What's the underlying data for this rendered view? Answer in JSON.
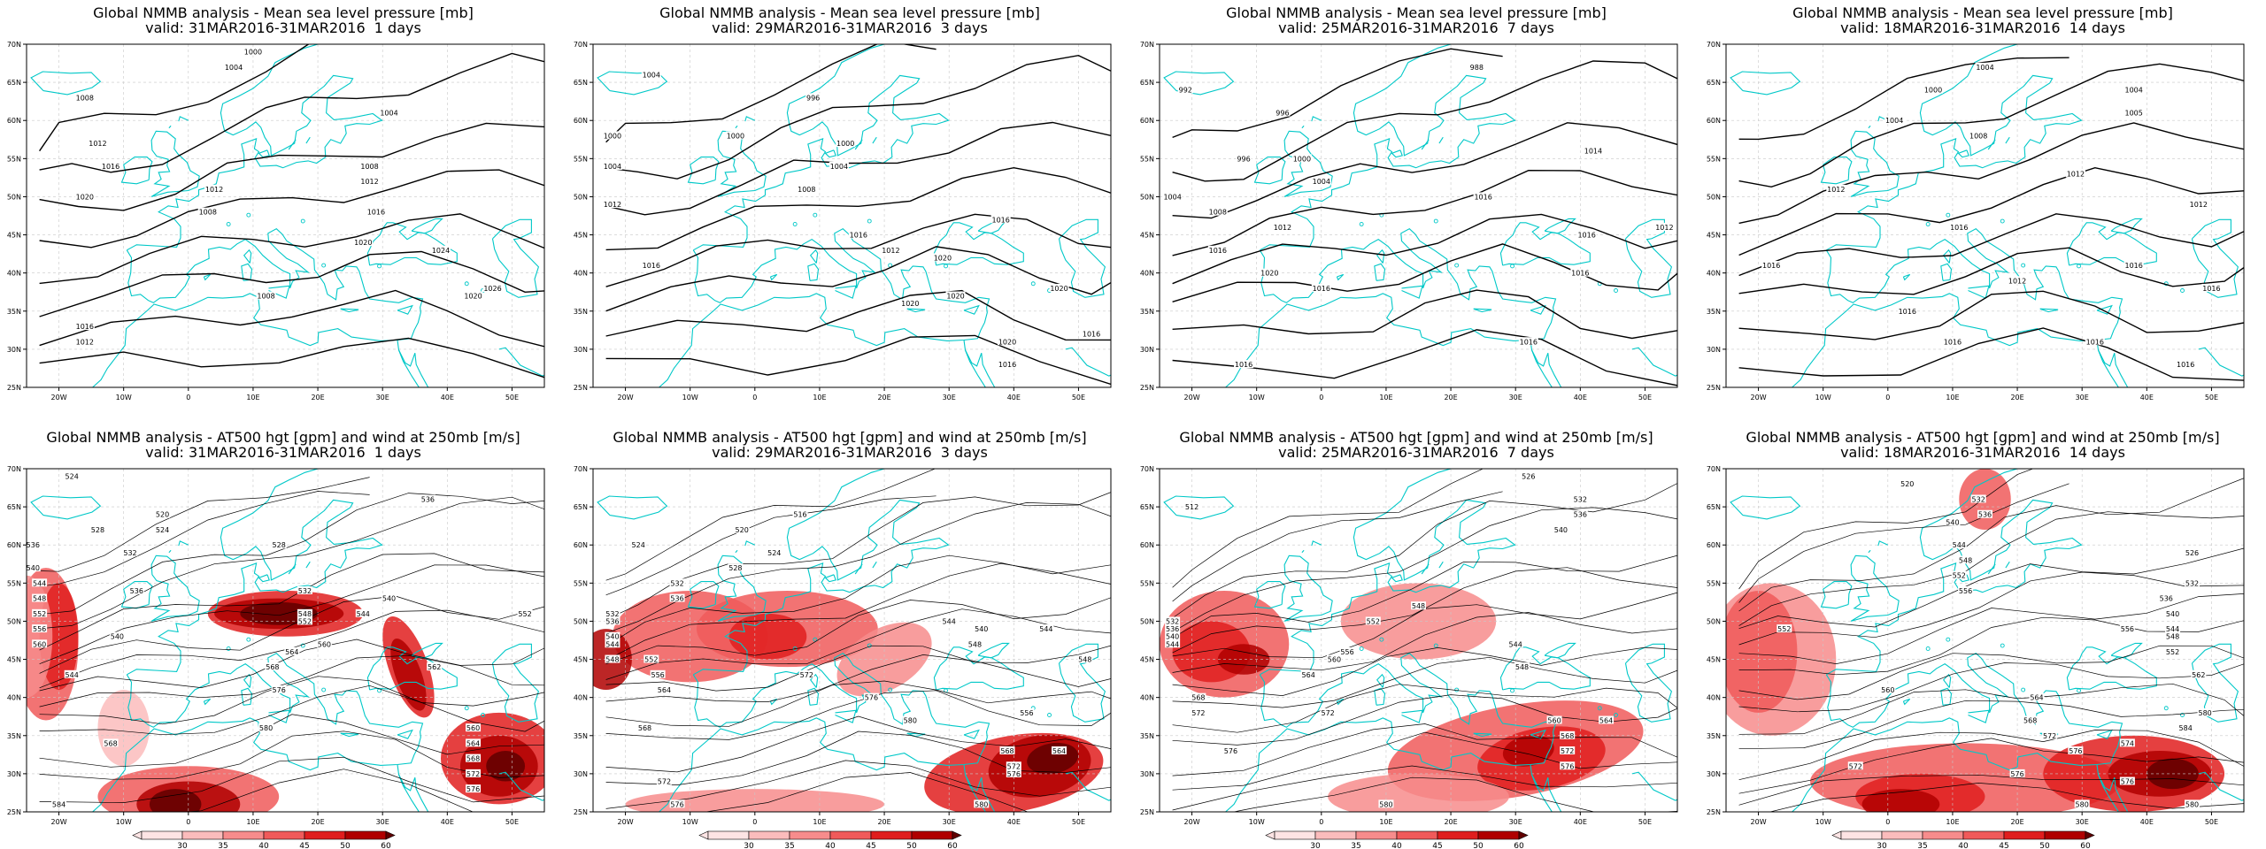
{
  "colors": {
    "coast": "#00c8c8",
    "contour": "#000000",
    "grid": "#c8c8c8"
  },
  "axes": {
    "lon_ticks": [
      "20W",
      "10W",
      "0",
      "10E",
      "20E",
      "30E",
      "40E",
      "50E"
    ],
    "lat_ticks": [
      "70N",
      "65N",
      "60N",
      "55N",
      "50N",
      "45N",
      "40N",
      "35N",
      "30N",
      "25N"
    ],
    "lon_range": [
      -25,
      55
    ],
    "lat_range": [
      25,
      70
    ]
  },
  "colorbar": {
    "ticks": [
      "30",
      "35",
      "40",
      "45",
      "50",
      "60"
    ],
    "colors": [
      "#fde4e4",
      "#fbbcbc",
      "#f78c8c",
      "#f05a5a",
      "#e01e1e",
      "#b00000",
      "#600000"
    ]
  },
  "chart_data": [
    {
      "type": "contour",
      "title": "Global NMMB analysis - Mean sea level pressure [mb]",
      "subtitle": "valid: 31MAR2016-31MAR2016  1 days",
      "contour_labels": [
        {
          "text": "1000",
          "lon": 10,
          "lat": 69
        },
        {
          "text": "1004",
          "lon": 7,
          "lat": 67
        },
        {
          "text": "1008",
          "lon": -16,
          "lat": 63
        },
        {
          "text": "1004",
          "lon": 31,
          "lat": 61
        },
        {
          "text": "1012",
          "lon": -14,
          "lat": 57
        },
        {
          "text": "1016",
          "lon": -12,
          "lat": 54
        },
        {
          "text": "1008",
          "lon": 28,
          "lat": 54
        },
        {
          "text": "1012",
          "lon": 28,
          "lat": 52
        },
        {
          "text": "1012",
          "lon": 4,
          "lat": 51
        },
        {
          "text": "1020",
          "lon": -16,
          "lat": 50
        },
        {
          "text": "1008",
          "lon": 3,
          "lat": 48
        },
        {
          "text": "1016",
          "lon": 29,
          "lat": 48
        },
        {
          "text": "1020",
          "lon": 27,
          "lat": 44
        },
        {
          "text": "1024",
          "lon": 39,
          "lat": 43
        },
        {
          "text": "1026",
          "lon": 47,
          "lat": 38
        },
        {
          "text": "1008",
          "lon": 12,
          "lat": 37
        },
        {
          "text": "1020",
          "lon": 44,
          "lat": 37
        },
        {
          "text": "1016",
          "lon": -16,
          "lat": 33
        },
        {
          "text": "1012",
          "lon": -16,
          "lat": 31
        }
      ]
    },
    {
      "type": "contour",
      "title": "Global NMMB analysis - Mean sea level pressure [mb]",
      "subtitle": "valid: 29MAR2016-31MAR2016  3 days",
      "contour_labels": [
        {
          "text": "1004",
          "lon": -16,
          "lat": 66
        },
        {
          "text": "996",
          "lon": 9,
          "lat": 63
        },
        {
          "text": "1000",
          "lon": -22,
          "lat": 58
        },
        {
          "text": "1000",
          "lon": -3,
          "lat": 58
        },
        {
          "text": "1000",
          "lon": 14,
          "lat": 57
        },
        {
          "text": "1004",
          "lon": -22,
          "lat": 54
        },
        {
          "text": "1004",
          "lon": 13,
          "lat": 54
        },
        {
          "text": "1008",
          "lon": 8,
          "lat": 51
        },
        {
          "text": "1012",
          "lon": -22,
          "lat": 49
        },
        {
          "text": "1016",
          "lon": 38,
          "lat": 47
        },
        {
          "text": "1016",
          "lon": 16,
          "lat": 45
        },
        {
          "text": "1012",
          "lon": 21,
          "lat": 43
        },
        {
          "text": "1020",
          "lon": 29,
          "lat": 42
        },
        {
          "text": "1016",
          "lon": -16,
          "lat": 41
        },
        {
          "text": "1020",
          "lon": 47,
          "lat": 38
        },
        {
          "text": "1020",
          "lon": 31,
          "lat": 37
        },
        {
          "text": "1020",
          "lon": 24,
          "lat": 36
        },
        {
          "text": "1020",
          "lon": 39,
          "lat": 31
        },
        {
          "text": "1016",
          "lon": 52,
          "lat": 32
        },
        {
          "text": "1016",
          "lon": 39,
          "lat": 28
        }
      ]
    },
    {
      "type": "contour",
      "title": "Global NMMB analysis - Mean sea level pressure [mb]",
      "subtitle": "valid: 25MAR2016-31MAR2016  7 days",
      "contour_labels": [
        {
          "text": "988",
          "lon": 24,
          "lat": 67
        },
        {
          "text": "992",
          "lon": -21,
          "lat": 64
        },
        {
          "text": "996",
          "lon": -6,
          "lat": 61
        },
        {
          "text": "996",
          "lon": -12,
          "lat": 55
        },
        {
          "text": "1000",
          "lon": -3,
          "lat": 55
        },
        {
          "text": "1014",
          "lon": 42,
          "lat": 56
        },
        {
          "text": "1004",
          "lon": -23,
          "lat": 50
        },
        {
          "text": "1004",
          "lon": 0,
          "lat": 52
        },
        {
          "text": "1008",
          "lon": -16,
          "lat": 48
        },
        {
          "text": "1012",
          "lon": -6,
          "lat": 46
        },
        {
          "text": "1016",
          "lon": 25,
          "lat": 50
        },
        {
          "text": "1016",
          "lon": 41,
          "lat": 45
        },
        {
          "text": "1012",
          "lon": 53,
          "lat": 46
        },
        {
          "text": "1016",
          "lon": -16,
          "lat": 43
        },
        {
          "text": "1020",
          "lon": -8,
          "lat": 40
        },
        {
          "text": "1016",
          "lon": 40,
          "lat": 40
        },
        {
          "text": "1016",
          "lon": 0,
          "lat": 38
        },
        {
          "text": "1016",
          "lon": 32,
          "lat": 31
        },
        {
          "text": "1016",
          "lon": -12,
          "lat": 28
        }
      ]
    },
    {
      "type": "contour",
      "title": "Global NMMB analysis - Mean sea level pressure [mb]",
      "subtitle": "valid: 18MAR2016-31MAR2016  14 days",
      "contour_labels": [
        {
          "text": "1004",
          "lon": 15,
          "lat": 67
        },
        {
          "text": "1000",
          "lon": 7,
          "lat": 64
        },
        {
          "text": "1004",
          "lon": 38,
          "lat": 64
        },
        {
          "text": "1004",
          "lon": 1,
          "lat": 60
        },
        {
          "text": "1005",
          "lon": 38,
          "lat": 61
        },
        {
          "text": "1008",
          "lon": 14,
          "lat": 58
        },
        {
          "text": "1012",
          "lon": -8,
          "lat": 51
        },
        {
          "text": "1012",
          "lon": 29,
          "lat": 53
        },
        {
          "text": "1012",
          "lon": 48,
          "lat": 49
        },
        {
          "text": "1016",
          "lon": 11,
          "lat": 46
        },
        {
          "text": "1016",
          "lon": -18,
          "lat": 41
        },
        {
          "text": "1016",
          "lon": 38,
          "lat": 41
        },
        {
          "text": "1012",
          "lon": 20,
          "lat": 39
        },
        {
          "text": "1016",
          "lon": 50,
          "lat": 38
        },
        {
          "text": "1016",
          "lon": 3,
          "lat": 35
        },
        {
          "text": "1016",
          "lon": 10,
          "lat": 31
        },
        {
          "text": "1016",
          "lon": 32,
          "lat": 31
        },
        {
          "text": "1016",
          "lon": 46,
          "lat": 28
        }
      ]
    },
    {
      "type": "contour",
      "title": "Global NMMB analysis - AT500 hgt [gpm] and wind at 250mb [m/s]",
      "subtitle": "valid: 31MAR2016-31MAR2016  1 days",
      "contour_labels": [
        {
          "text": "524",
          "lon": -18,
          "lat": 69
        },
        {
          "text": "536",
          "lon": 37,
          "lat": 66
        },
        {
          "text": "520",
          "lon": -4,
          "lat": 64
        },
        {
          "text": "524",
          "lon": -4,
          "lat": 62
        },
        {
          "text": "528",
          "lon": -14,
          "lat": 62
        },
        {
          "text": "528",
          "lon": 14,
          "lat": 60
        },
        {
          "text": "532",
          "lon": -9,
          "lat": 59
        },
        {
          "text": "536",
          "lon": -24,
          "lat": 60
        },
        {
          "text": "540",
          "lon": -24,
          "lat": 57
        },
        {
          "text": "544",
          "lon": -23,
          "lat": 55
        },
        {
          "text": "548",
          "lon": -23,
          "lat": 53
        },
        {
          "text": "552",
          "lon": -23,
          "lat": 51
        },
        {
          "text": "556",
          "lon": -23,
          "lat": 49
        },
        {
          "text": "560",
          "lon": -23,
          "lat": 47
        },
        {
          "text": "532",
          "lon": 18,
          "lat": 54
        },
        {
          "text": "536",
          "lon": -8,
          "lat": 54
        },
        {
          "text": "540",
          "lon": 31,
          "lat": 53
        },
        {
          "text": "544",
          "lon": 27,
          "lat": 51
        },
        {
          "text": "548",
          "lon": 18,
          "lat": 51
        },
        {
          "text": "552",
          "lon": 18,
          "lat": 50
        },
        {
          "text": "540",
          "lon": -11,
          "lat": 48
        },
        {
          "text": "544",
          "lon": -18,
          "lat": 43
        },
        {
          "text": "564",
          "lon": 16,
          "lat": 46
        },
        {
          "text": "568",
          "lon": 13,
          "lat": 44
        },
        {
          "text": "560",
          "lon": 21,
          "lat": 47
        },
        {
          "text": "562",
          "lon": 38,
          "lat": 44
        },
        {
          "text": "552",
          "lon": 52,
          "lat": 51
        },
        {
          "text": "576",
          "lon": 14,
          "lat": 41
        },
        {
          "text": "568",
          "lon": -12,
          "lat": 34
        },
        {
          "text": "580",
          "lon": 12,
          "lat": 36
        },
        {
          "text": "560",
          "lon": 44,
          "lat": 36
        },
        {
          "text": "564",
          "lon": 44,
          "lat": 34
        },
        {
          "text": "568",
          "lon": 44,
          "lat": 32
        },
        {
          "text": "572",
          "lon": 44,
          "lat": 30
        },
        {
          "text": "576",
          "lon": 44,
          "lat": 28
        },
        {
          "text": "584",
          "lon": -20,
          "lat": 26
        }
      ]
    },
    {
      "type": "contour",
      "title": "Global NMMB analysis - AT500 hgt [gpm] and wind at 250mb [m/s]",
      "subtitle": "valid: 29MAR2016-31MAR2016  3 days",
      "contour_labels": [
        {
          "text": "516",
          "lon": 7,
          "lat": 64
        },
        {
          "text": "520",
          "lon": -2,
          "lat": 62
        },
        {
          "text": "524",
          "lon": -18,
          "lat": 60
        },
        {
          "text": "524",
          "lon": 3,
          "lat": 59
        },
        {
          "text": "528",
          "lon": -3,
          "lat": 57
        },
        {
          "text": "532",
          "lon": -12,
          "lat": 55
        },
        {
          "text": "536",
          "lon": -12,
          "lat": 53
        },
        {
          "text": "532",
          "lon": -22,
          "lat": 51
        },
        {
          "text": "536",
          "lon": -22,
          "lat": 50
        },
        {
          "text": "540",
          "lon": -22,
          "lat": 48
        },
        {
          "text": "544",
          "lon": -22,
          "lat": 47
        },
        {
          "text": "548",
          "lon": -22,
          "lat": 45
        },
        {
          "text": "540",
          "lon": 35,
          "lat": 49
        },
        {
          "text": "544",
          "lon": 30,
          "lat": 50
        },
        {
          "text": "548",
          "lon": 34,
          "lat": 47
        },
        {
          "text": "552",
          "lon": -16,
          "lat": 45
        },
        {
          "text": "556",
          "lon": -15,
          "lat": 43
        },
        {
          "text": "564",
          "lon": -14,
          "lat": 41
        },
        {
          "text": "544",
          "lon": 45,
          "lat": 49
        },
        {
          "text": "548",
          "lon": 51,
          "lat": 45
        },
        {
          "text": "568",
          "lon": -17,
          "lat": 36
        },
        {
          "text": "572",
          "lon": 8,
          "lat": 43
        },
        {
          "text": "576",
          "lon": 18,
          "lat": 40
        },
        {
          "text": "580",
          "lon": 24,
          "lat": 37
        },
        {
          "text": "556",
          "lon": 42,
          "lat": 38
        },
        {
          "text": "564",
          "lon": 47,
          "lat": 33
        },
        {
          "text": "568",
          "lon": 39,
          "lat": 33
        },
        {
          "text": "572",
          "lon": 40,
          "lat": 31
        },
        {
          "text": "576",
          "lon": 40,
          "lat": 30
        },
        {
          "text": "572",
          "lon": -14,
          "lat": 29
        },
        {
          "text": "576",
          "lon": -12,
          "lat": 26
        },
        {
          "text": "580",
          "lon": 35,
          "lat": 26
        }
      ]
    },
    {
      "type": "contour",
      "title": "Global NMMB analysis - AT500 hgt [gpm] and wind at 250mb [m/s]",
      "subtitle": "valid: 25MAR2016-31MAR2016  7 days",
      "contour_labels": [
        {
          "text": "526",
          "lon": 32,
          "lat": 69
        },
        {
          "text": "512",
          "lon": -20,
          "lat": 65
        },
        {
          "text": "532",
          "lon": 40,
          "lat": 66
        },
        {
          "text": "536",
          "lon": 40,
          "lat": 64
        },
        {
          "text": "540",
          "lon": 37,
          "lat": 62
        },
        {
          "text": "532",
          "lon": -23,
          "lat": 50
        },
        {
          "text": "536",
          "lon": -23,
          "lat": 49
        },
        {
          "text": "540",
          "lon": -23,
          "lat": 48
        },
        {
          "text": "544",
          "lon": -23,
          "lat": 47
        },
        {
          "text": "548",
          "lon": 15,
          "lat": 52
        },
        {
          "text": "552",
          "lon": 8,
          "lat": 50
        },
        {
          "text": "556",
          "lon": 4,
          "lat": 46
        },
        {
          "text": "560",
          "lon": 2,
          "lat": 45
        },
        {
          "text": "544",
          "lon": 30,
          "lat": 47
        },
        {
          "text": "548",
          "lon": 31,
          "lat": 44
        },
        {
          "text": "564",
          "lon": -2,
          "lat": 43
        },
        {
          "text": "568",
          "lon": -19,
          "lat": 40
        },
        {
          "text": "572",
          "lon": -19,
          "lat": 38
        },
        {
          "text": "572",
          "lon": 1,
          "lat": 38
        },
        {
          "text": "576",
          "lon": -14,
          "lat": 33
        },
        {
          "text": "560",
          "lon": 36,
          "lat": 37
        },
        {
          "text": "564",
          "lon": 44,
          "lat": 37
        },
        {
          "text": "568",
          "lon": 38,
          "lat": 35
        },
        {
          "text": "572",
          "lon": 38,
          "lat": 33
        },
        {
          "text": "576",
          "lon": 38,
          "lat": 31
        },
        {
          "text": "580",
          "lon": 10,
          "lat": 26
        }
      ]
    },
    {
      "type": "contour",
      "title": "Global NMMB analysis - AT500 hgt [gpm] and wind at 250mb [m/s]",
      "subtitle": "valid: 18MAR2016-31MAR2016  14 days",
      "contour_labels": [
        {
          "text": "520",
          "lon": 3,
          "lat": 68
        },
        {
          "text": "532",
          "lon": 14,
          "lat": 66
        },
        {
          "text": "536",
          "lon": 15,
          "lat": 64
        },
        {
          "text": "540",
          "lon": 10,
          "lat": 63
        },
        {
          "text": "544",
          "lon": 11,
          "lat": 60
        },
        {
          "text": "548",
          "lon": 12,
          "lat": 58
        },
        {
          "text": "552",
          "lon": 11,
          "lat": 56
        },
        {
          "text": "556",
          "lon": 12,
          "lat": 54
        },
        {
          "text": "526",
          "lon": 47,
          "lat": 59
        },
        {
          "text": "532",
          "lon": 47,
          "lat": 55
        },
        {
          "text": "536",
          "lon": 43,
          "lat": 53
        },
        {
          "text": "540",
          "lon": 44,
          "lat": 51
        },
        {
          "text": "544",
          "lon": 44,
          "lat": 49
        },
        {
          "text": "548",
          "lon": 44,
          "lat": 48
        },
        {
          "text": "552",
          "lon": 44,
          "lat": 46
        },
        {
          "text": "556",
          "lon": 37,
          "lat": 49
        },
        {
          "text": "552",
          "lon": -16,
          "lat": 49
        },
        {
          "text": "562",
          "lon": 48,
          "lat": 43
        },
        {
          "text": "560",
          "lon": 0,
          "lat": 41
        },
        {
          "text": "564",
          "lon": 23,
          "lat": 40
        },
        {
          "text": "568",
          "lon": 22,
          "lat": 37
        },
        {
          "text": "572",
          "lon": 25,
          "lat": 35
        },
        {
          "text": "576",
          "lon": 29,
          "lat": 33
        },
        {
          "text": "580",
          "lon": 49,
          "lat": 38
        },
        {
          "text": "584",
          "lon": 46,
          "lat": 36
        },
        {
          "text": "572",
          "lon": -5,
          "lat": 31
        },
        {
          "text": "574",
          "lon": 37,
          "lat": 34
        },
        {
          "text": "576",
          "lon": 20,
          "lat": 30
        },
        {
          "text": "580",
          "lon": 30,
          "lat": 26
        },
        {
          "text": "576",
          "lon": 37,
          "lat": 29
        },
        {
          "text": "580",
          "lon": 47,
          "lat": 26
        }
      ]
    }
  ]
}
